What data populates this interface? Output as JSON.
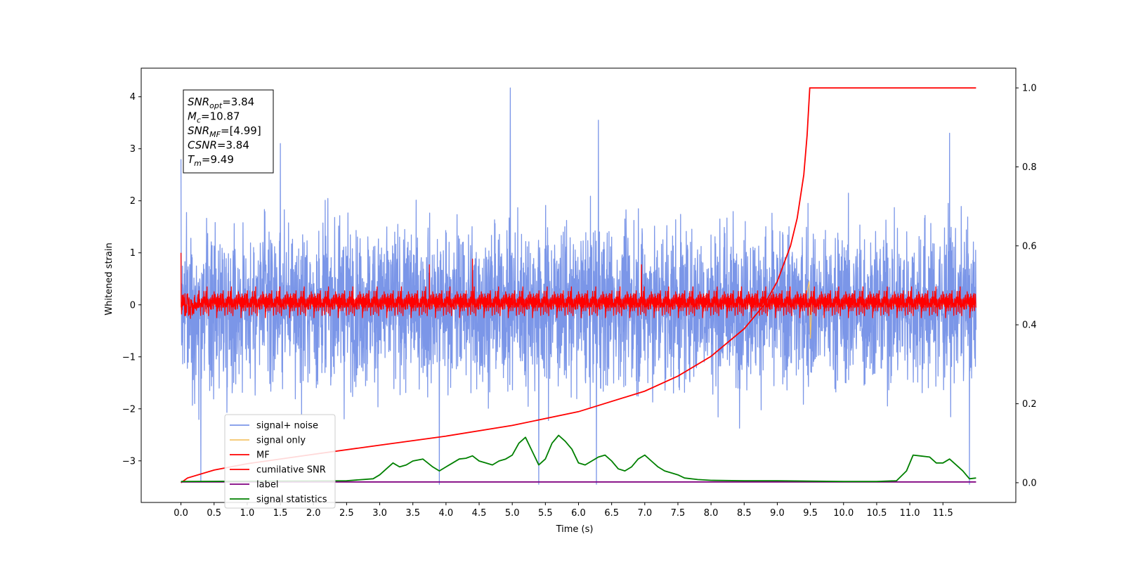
{
  "chart_data": {
    "type": "line",
    "title": "",
    "xlabel": "Time (s)",
    "ylabel": "Whitened strain",
    "xlim": [
      -0.6,
      12.6
    ],
    "ylim": [
      -3.8,
      4.55
    ],
    "ylim_right": [
      -0.05,
      1.05
    ],
    "x_ticks": [
      0.0,
      0.5,
      1.0,
      1.5,
      2.0,
      2.5,
      3.0,
      3.5,
      4.0,
      4.5,
      5.0,
      5.5,
      6.0,
      6.5,
      7.0,
      7.5,
      8.0,
      8.5,
      9.0,
      9.5,
      10.0,
      10.5,
      11.0,
      11.5
    ],
    "x_tick_labels": [
      "0.0",
      "0.5",
      "1.0",
      "1.5",
      "2.0",
      "2.5",
      "3.0",
      "3.5",
      "4.0",
      "4.5",
      "5.0",
      "5.5",
      "6.0",
      "6.5",
      "7.0",
      "7.5",
      "8.0",
      "8.5",
      "9.0",
      "9.5",
      "10.0",
      "10.5",
      "11.0",
      "11.5"
    ],
    "y_ticks": [
      -3,
      -2,
      -1,
      0,
      1,
      2,
      3,
      4
    ],
    "y_tick_labels": [
      "−3",
      "−2",
      "−1",
      "0",
      "1",
      "2",
      "3",
      "4"
    ],
    "y_right_ticks": [
      0.0,
      0.2,
      0.4,
      0.6,
      0.8,
      1.0
    ],
    "y_right_tick_labels": [
      "0.0",
      "0.2",
      "0.4",
      "0.6",
      "0.8",
      "1.0"
    ],
    "grid": false,
    "legend_position": "lower-left",
    "legend": [
      {
        "label": "signal+ noise",
        "color": "#7b96e8"
      },
      {
        "label": "signal only",
        "color": "#f5c46a"
      },
      {
        "label": "MF",
        "color": "#ff0000"
      },
      {
        "label": "cumilative SNR",
        "color": "#ff0000"
      },
      {
        "label": "label",
        "color": "#800080"
      },
      {
        "label": "signal statistics",
        "color": "#008000"
      }
    ],
    "annotation": [
      {
        "base": "SNR",
        "sub": "opt",
        "rest": "=3.84"
      },
      {
        "base": "M",
        "sub": "c",
        "rest": "=10.87"
      },
      {
        "base": "SNR",
        "sub": "MF",
        "rest": "=[4.99]"
      },
      {
        "base": "CSNR",
        "sub": "",
        "rest": "=3.84"
      },
      {
        "base": "T",
        "sub": "m",
        "rest": "=9.49"
      }
    ],
    "series": [
      {
        "name": "signal+ noise",
        "axis": "left",
        "color": "#7b96e8",
        "x_range": [
          0.0,
          12.0
        ],
        "envelope_approx": {
          "upper": [
            1.6,
            4.17
          ],
          "lower": [
            -3.45,
            -1.5
          ]
        },
        "notable_peaks": [
          [
            0.0,
            2.8
          ],
          [
            1.5,
            3.1
          ],
          [
            4.97,
            4.17
          ],
          [
            6.3,
            3.55
          ],
          [
            11.6,
            3.3
          ]
        ],
        "notable_troughs": [
          [
            0.3,
            -3.4
          ],
          [
            3.9,
            -3.45
          ],
          [
            5.4,
            -3.45
          ],
          [
            6.27,
            -3.45
          ],
          [
            11.9,
            -3.45
          ]
        ]
      },
      {
        "name": "signal only",
        "axis": "left",
        "color": "#f5c46a",
        "x": [
          0.0,
          9.3,
          9.4,
          9.45,
          9.48,
          9.5,
          9.52,
          12.0
        ],
        "y": [
          0.0,
          0.0,
          0.05,
          0.25,
          0.45,
          -0.65,
          0.0,
          0.0
        ]
      },
      {
        "name": "MF",
        "axis": "left",
        "color": "#ff0000",
        "x_range": [
          0.0,
          12.0
        ],
        "envelope_approx": {
          "upper": [
            0.3,
            1.0
          ],
          "lower": [
            -0.35,
            -0.2
          ]
        },
        "notable_peaks": [
          [
            0.0,
            1.0
          ],
          [
            3.75,
            0.77
          ],
          [
            4.4,
            0.88
          ],
          [
            6.95,
            0.77
          ]
        ]
      },
      {
        "name": "cumilative SNR",
        "axis": "right",
        "color": "#ff0000",
        "x": [
          0.0,
          0.1,
          0.5,
          1.0,
          2.0,
          3.0,
          4.0,
          5.0,
          6.0,
          7.0,
          7.5,
          8.0,
          8.5,
          8.8,
          9.0,
          9.2,
          9.3,
          9.4,
          9.45,
          9.49,
          9.5,
          12.0
        ],
        "y": [
          0.0,
          0.012,
          0.032,
          0.048,
          0.072,
          0.095,
          0.118,
          0.145,
          0.18,
          0.232,
          0.27,
          0.32,
          0.39,
          0.45,
          0.51,
          0.6,
          0.67,
          0.78,
          0.88,
          1.0,
          1.0,
          1.0
        ]
      },
      {
        "name": "label",
        "axis": "right",
        "color": "#800080",
        "x": [
          0.0,
          12.0
        ],
        "y": [
          0.002,
          0.002
        ]
      },
      {
        "name": "signal statistics",
        "axis": "right",
        "color": "#008000",
        "x": [
          0.0,
          2.5,
          2.9,
          3.0,
          3.1,
          3.2,
          3.3,
          3.4,
          3.5,
          3.65,
          3.8,
          3.9,
          4.0,
          4.1,
          4.2,
          4.3,
          4.4,
          4.5,
          4.6,
          4.7,
          4.8,
          4.9,
          5.0,
          5.1,
          5.2,
          5.3,
          5.4,
          5.5,
          5.6,
          5.7,
          5.8,
          5.9,
          6.0,
          6.1,
          6.2,
          6.3,
          6.4,
          6.5,
          6.6,
          6.7,
          6.8,
          6.9,
          7.0,
          7.1,
          7.2,
          7.3,
          7.4,
          7.5,
          7.6,
          7.8,
          8.0,
          8.5,
          9.0,
          9.5,
          10.0,
          10.5,
          10.8,
          10.95,
          11.05,
          11.15,
          11.3,
          11.4,
          11.5,
          11.6,
          11.7,
          11.8,
          11.9,
          12.0
        ],
        "y": [
          0.003,
          0.005,
          0.01,
          0.02,
          0.035,
          0.05,
          0.04,
          0.045,
          0.055,
          0.06,
          0.04,
          0.03,
          0.04,
          0.05,
          0.06,
          0.062,
          0.068,
          0.055,
          0.05,
          0.045,
          0.055,
          0.06,
          0.07,
          0.1,
          0.115,
          0.08,
          0.045,
          0.06,
          0.1,
          0.12,
          0.105,
          0.085,
          0.05,
          0.045,
          0.055,
          0.065,
          0.07,
          0.055,
          0.035,
          0.03,
          0.04,
          0.06,
          0.07,
          0.055,
          0.04,
          0.03,
          0.025,
          0.02,
          0.012,
          0.008,
          0.006,
          0.005,
          0.005,
          0.004,
          0.003,
          0.003,
          0.005,
          0.03,
          0.07,
          0.068,
          0.065,
          0.05,
          0.05,
          0.06,
          0.045,
          0.03,
          0.01,
          0.012
        ]
      }
    ]
  }
}
